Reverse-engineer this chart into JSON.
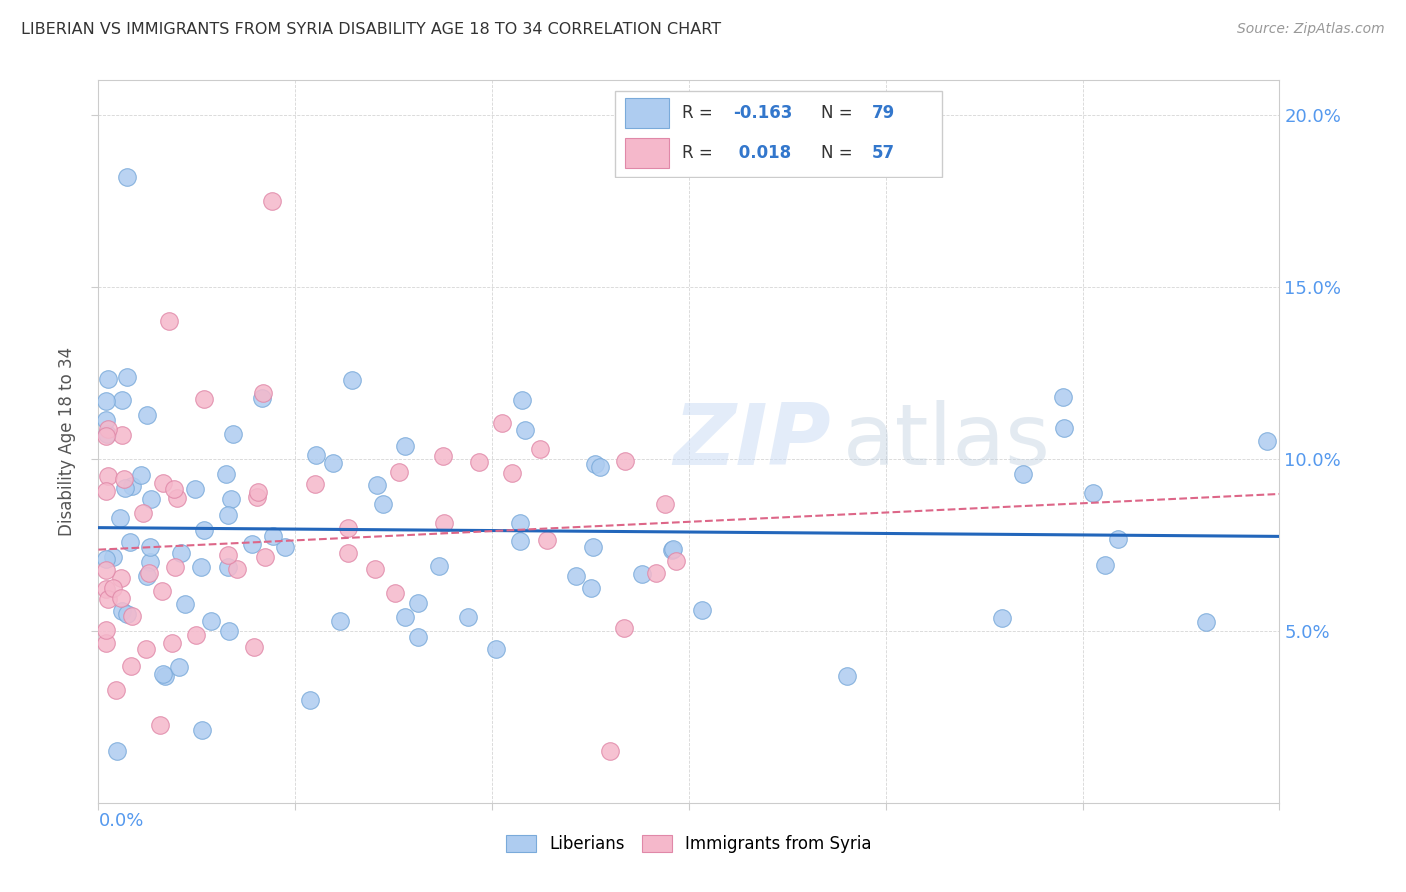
{
  "title": "LIBERIAN VS IMMIGRANTS FROM SYRIA DISABILITY AGE 18 TO 34 CORRELATION CHART",
  "source": "Source: ZipAtlas.com",
  "ylabel": "Disability Age 18 to 34",
  "xlim": [
    0.0,
    0.15
  ],
  "ylim": [
    0.0,
    0.21
  ],
  "ytick_vals": [
    0.05,
    0.1,
    0.15,
    0.2
  ],
  "ytick_labels": [
    "5.0%",
    "10.0%",
    "15.0%",
    "20.0%"
  ],
  "xtick_vals": [
    0.0,
    0.025,
    0.05,
    0.075,
    0.1,
    0.125,
    0.15
  ],
  "liberian_color": "#aeccf0",
  "liberian_edge_color": "#7aaada",
  "syria_color": "#f5b8cb",
  "syria_edge_color": "#e088a8",
  "trend_liberian_color": "#2266bb",
  "trend_syria_color": "#dd6688",
  "legend_liberian_label": "Liberians",
  "legend_syria_label": "Immigrants from Syria",
  "R_liberian": "-0.163",
  "N_liberian": "79",
  "R_syria": "0.018",
  "N_syria": "57",
  "watermark": "ZIPatlas",
  "background_color": "#ffffff",
  "grid_color": "#cccccc",
  "axis_label_color": "#5599ee",
  "title_color": "#333333",
  "source_color": "#999999",
  "ylabel_color": "#555555"
}
